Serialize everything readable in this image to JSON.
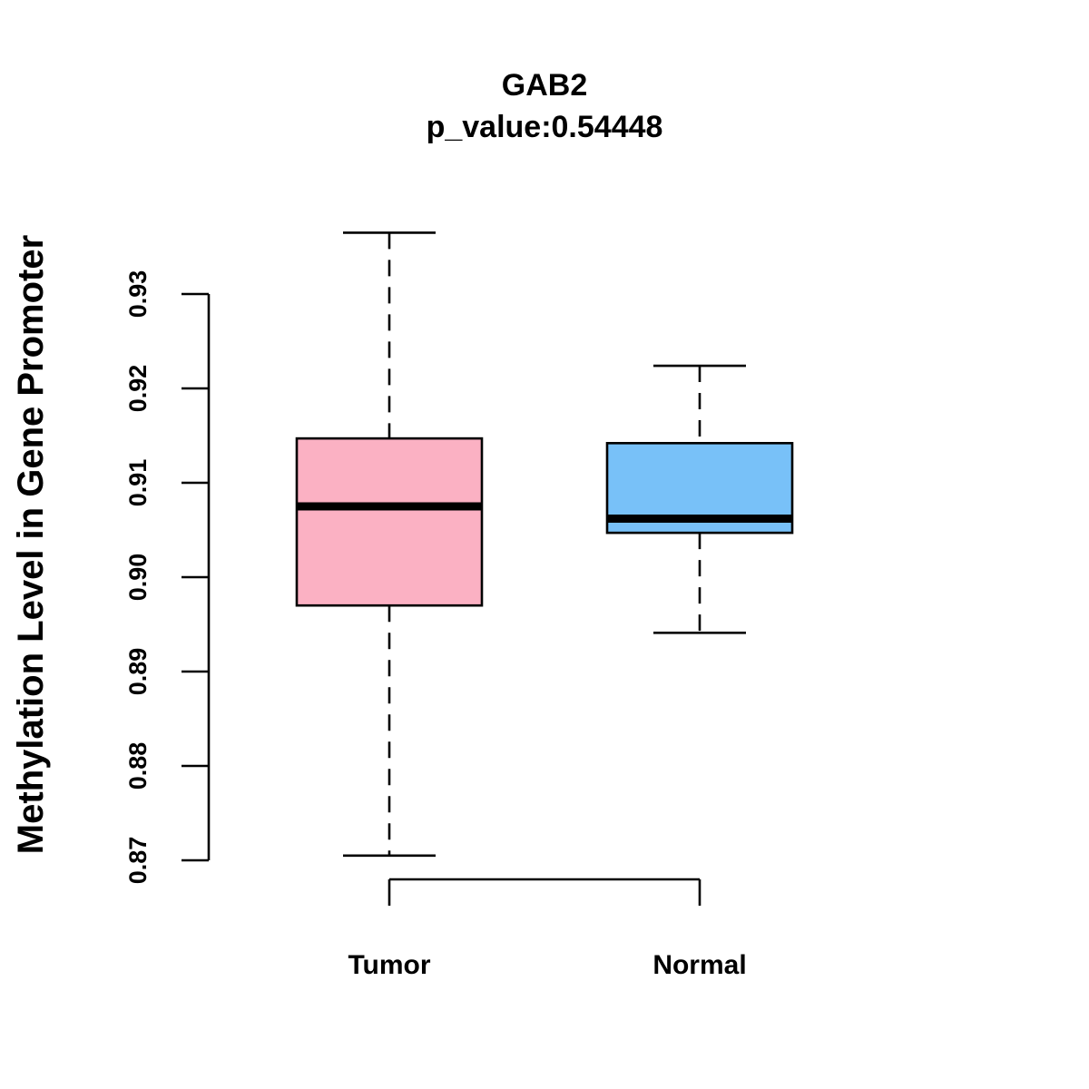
{
  "chart_data": {
    "type": "box",
    "title": "GAB2",
    "subtitle": "p_value:0.54448",
    "xlabel": "",
    "ylabel": "Methylation Level in Gene Promoter",
    "ylim": [
      0.87,
      0.93
    ],
    "yticks": [
      0.87,
      0.88,
      0.89,
      0.9,
      0.91,
      0.92,
      0.93
    ],
    "ytick_labels": [
      "0.87",
      "0.88",
      "0.89",
      "0.90",
      "0.91",
      "0.92",
      "0.93"
    ],
    "categories": [
      "Tumor",
      "Normal"
    ],
    "series": [
      {
        "name": "Tumor",
        "whisker_low": 0.8705,
        "q1": 0.897,
        "median": 0.9075,
        "q3": 0.9147,
        "whisker_high": 0.9365,
        "color": "#FBB1C3"
      },
      {
        "name": "Normal",
        "whisker_low": 0.8941,
        "q1": 0.9047,
        "median": 0.9062,
        "q3": 0.9142,
        "whisker_high": 0.9224,
        "color": "#78C1F8"
      }
    ],
    "grid": false,
    "legend": "none"
  }
}
